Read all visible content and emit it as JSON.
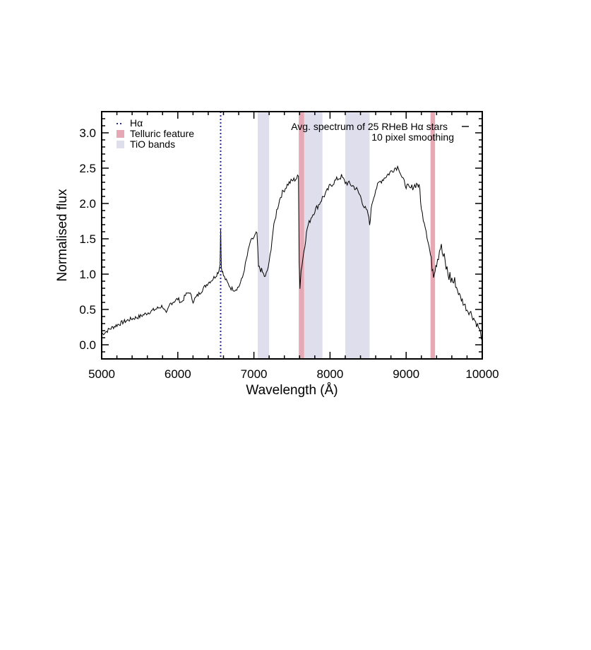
{
  "chart_data": {
    "type": "line",
    "title": "",
    "xlabel": "Wavelength (Å)",
    "ylabel": "Normalised flux",
    "xlim": [
      5000,
      10000
    ],
    "ylim": [
      -0.2,
      3.3
    ],
    "xticks": [
      5000,
      6000,
      7000,
      8000,
      9000,
      10000
    ],
    "xtick_labels": [
      "5000",
      "6000",
      "7000",
      "8000",
      "9000",
      "10000"
    ],
    "yticks": [
      0.0,
      0.5,
      1.0,
      1.5,
      2.0,
      2.5,
      3.0
    ],
    "ytick_labels": [
      "0.0",
      "0.5",
      "1.0",
      "1.5",
      "2.0",
      "2.5",
      "3.0"
    ],
    "grid": false,
    "legend_position": "top-left",
    "legend": [
      {
        "label": "Hα",
        "style": "dotted-line",
        "color": "#2b2b8f"
      },
      {
        "label": "Telluric feature",
        "style": "filled-box",
        "color": "#e5a8b4"
      },
      {
        "label": "TiO bands",
        "style": "filled-box",
        "color": "#dedeec"
      }
    ],
    "annotation": {
      "lines": [
        "Avg. spectrum of 25 RHeB Hα stars",
        "10 pixel smoothing"
      ],
      "position": "top-right"
    },
    "marker_line": {
      "x": 6563,
      "color": "#2b2b8f"
    },
    "telluric_bands": [
      [
        7590,
        7660
      ],
      [
        9320,
        9380
      ]
    ],
    "tio_bands": [
      [
        7050,
        7200
      ],
      [
        7660,
        7900
      ],
      [
        8200,
        8520
      ]
    ],
    "series": [
      {
        "color": "#000000",
        "x": [
          5000,
          5050,
          5100,
          5200,
          5300,
          5400,
          5500,
          5600,
          5700,
          5800,
          5850,
          5900,
          6000,
          6050,
          6100,
          6150,
          6200,
          6300,
          6400,
          6450,
          6500,
          6540,
          6555,
          6563,
          6572,
          6600,
          6650,
          6700,
          6750,
          6800,
          6850,
          6900,
          6950,
          7000,
          7040,
          7060,
          7100,
          7150,
          7200,
          7250,
          7300,
          7350,
          7400,
          7450,
          7500,
          7550,
          7585,
          7595,
          7605,
          7620,
          7640,
          7680,
          7700,
          7750,
          7800,
          7850,
          7900,
          7950,
          8000,
          8050,
          8100,
          8150,
          8200,
          8250,
          8300,
          8350,
          8400,
          8450,
          8500,
          8520,
          8550,
          8600,
          8650,
          8700,
          8750,
          8800,
          8850,
          8900,
          8950,
          9000,
          9050,
          9100,
          9150,
          9180,
          9200,
          9250,
          9300,
          9330,
          9360,
          9400,
          9450,
          9500,
          9550,
          9600,
          9650,
          9700,
          9750,
          9800,
          9850,
          9900,
          9950,
          10000
        ],
        "y": [
          0.15,
          0.18,
          0.22,
          0.28,
          0.33,
          0.37,
          0.4,
          0.45,
          0.5,
          0.55,
          0.43,
          0.58,
          0.65,
          0.6,
          0.7,
          0.75,
          0.62,
          0.75,
          0.88,
          0.92,
          0.98,
          1.05,
          1.15,
          1.65,
          1.1,
          0.98,
          0.88,
          0.8,
          0.78,
          0.82,
          0.95,
          1.2,
          1.45,
          1.52,
          1.58,
          1.1,
          1.05,
          0.95,
          1.15,
          1.6,
          1.9,
          2.1,
          2.2,
          2.28,
          2.32,
          2.35,
          2.38,
          1.2,
          0.82,
          1.05,
          1.2,
          1.5,
          1.65,
          1.8,
          1.9,
          1.98,
          2.08,
          2.15,
          2.25,
          2.3,
          2.35,
          2.38,
          2.3,
          2.28,
          2.25,
          2.2,
          2.1,
          1.95,
          1.85,
          1.7,
          2.0,
          2.2,
          2.3,
          2.35,
          2.4,
          2.45,
          2.5,
          2.52,
          2.35,
          2.25,
          2.2,
          2.25,
          2.28,
          2.2,
          1.9,
          1.7,
          1.4,
          1.2,
          1.05,
          1.2,
          1.4,
          1.2,
          1.0,
          0.92,
          0.85,
          0.7,
          0.6,
          0.5,
          0.45,
          0.35,
          0.25,
          0.08
        ]
      }
    ]
  }
}
